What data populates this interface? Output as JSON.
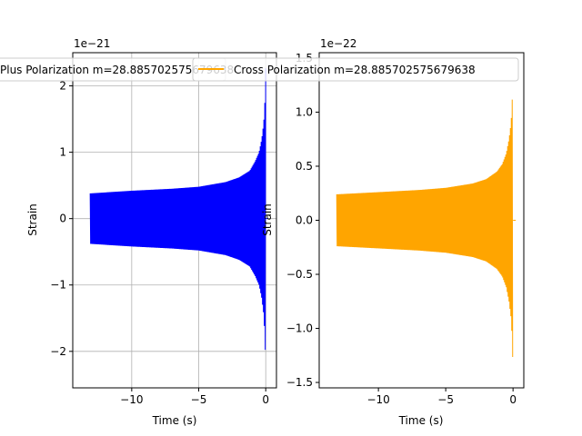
{
  "chart_data": [
    {
      "type": "line",
      "xlabel": "Time (s)",
      "ylabel": "Strain",
      "offset_label": "1e−21",
      "grid": true,
      "xlim": [
        -14.4,
        0.8
      ],
      "ylim": [
        -2.55,
        2.5
      ],
      "xticks": [
        -10,
        -5,
        0
      ],
      "xtick_labels": [
        "−10",
        "−5",
        "0"
      ],
      "yticks": [
        -2,
        -1,
        0,
        1,
        2
      ],
      "ytick_labels": [
        "−2",
        "−1",
        "0",
        "1",
        "2"
      ],
      "legend_position": "top-center",
      "series": [
        {
          "name": "Plus Polarization m=28.885702575679638",
          "color": "#0000ff",
          "t_start": -13.1,
          "t_end": 0,
          "envelope": [
            [
              -13.1,
              0.38
            ],
            [
              -10,
              0.42
            ],
            [
              -7,
              0.45
            ],
            [
              -5,
              0.48
            ],
            [
              -3,
              0.55
            ],
            [
              -2,
              0.62
            ],
            [
              -1.2,
              0.72
            ],
            [
              -0.8,
              0.86
            ],
            [
              -0.5,
              1.0
            ],
            [
              -0.3,
              1.2
            ],
            [
              -0.15,
              1.45
            ],
            [
              -0.07,
              1.75
            ],
            [
              -0.02,
              2.1
            ],
            [
              0,
              2.3
            ]
          ]
        }
      ]
    },
    {
      "type": "line",
      "xlabel": "Time (s)",
      "ylabel": "Strain",
      "offset_label": "1e−22",
      "grid": false,
      "xlim": [
        -14.4,
        0.8
      ],
      "ylim": [
        -1.55,
        1.55
      ],
      "xticks": [
        -10,
        -5,
        0
      ],
      "xtick_labels": [
        "−10",
        "−5",
        "0"
      ],
      "yticks": [
        -1.5,
        -1.0,
        -0.5,
        0.0,
        0.5,
        1.0,
        1.5
      ],
      "ytick_labels": [
        "−1.5",
        "−1.0",
        "−0.5",
        "0.0",
        "0.5",
        "1.0",
        "1.5"
      ],
      "legend_position": "top-center",
      "series": [
        {
          "name": "Cross Polarization m=28.885702575679638",
          "color": "#ffa500",
          "t_start": -13.1,
          "t_end": 0,
          "envelope": [
            [
              -13.1,
              0.24
            ],
            [
              -10,
              0.26
            ],
            [
              -7,
              0.28
            ],
            [
              -5,
              0.3
            ],
            [
              -3,
              0.34
            ],
            [
              -2,
              0.38
            ],
            [
              -1.2,
              0.45
            ],
            [
              -0.8,
              0.52
            ],
            [
              -0.5,
              0.62
            ],
            [
              -0.3,
              0.75
            ],
            [
              -0.15,
              0.9
            ],
            [
              -0.07,
              1.08
            ],
            [
              -0.02,
              1.3
            ],
            [
              0,
              1.4
            ]
          ]
        }
      ]
    }
  ]
}
